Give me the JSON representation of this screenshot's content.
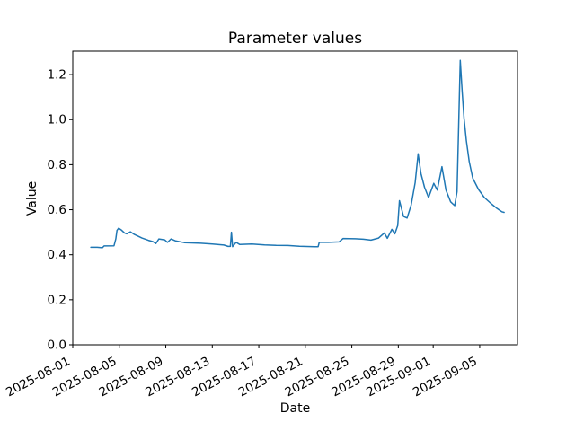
{
  "figure": {
    "background_color": "#ffffff"
  },
  "chart_data": {
    "type": "line",
    "title": "Parameter values",
    "xlabel": "Date",
    "ylabel": "Value",
    "line_color": "#1f77b4",
    "line_width": 1.5,
    "axis_color": "#000000",
    "grid": false,
    "legend": false,
    "x_unit": "days since 2025-08-01",
    "x_domain_days": [
      0,
      38.25
    ],
    "ylim": [
      0,
      1.304
    ],
    "y_ticks": [
      {
        "label": "0.0",
        "value": 0.0
      },
      {
        "label": "0.2",
        "value": 0.2
      },
      {
        "label": "0.4",
        "value": 0.4
      },
      {
        "label": "0.6",
        "value": 0.6
      },
      {
        "label": "0.8",
        "value": 0.8
      },
      {
        "label": "1.0",
        "value": 1.0
      },
      {
        "label": "1.2",
        "value": 1.2
      }
    ],
    "x_ticks": [
      {
        "label": "2025-08-01",
        "day": 0
      },
      {
        "label": "2025-08-05",
        "day": 4
      },
      {
        "label": "2025-08-09",
        "day": 8
      },
      {
        "label": "2025-08-13",
        "day": 12
      },
      {
        "label": "2025-08-17",
        "day": 16
      },
      {
        "label": "2025-08-21",
        "day": 20
      },
      {
        "label": "2025-08-25",
        "day": 24
      },
      {
        "label": "2025-08-29",
        "day": 28
      },
      {
        "label": "2025-09-01",
        "day": 31
      },
      {
        "label": "2025-09-05",
        "day": 35
      }
    ],
    "series": [
      {
        "name": "parameter-values",
        "points": [
          [
            1.55,
            0.433
          ],
          [
            2.1,
            0.433
          ],
          [
            2.55,
            0.431
          ],
          [
            2.7,
            0.439
          ],
          [
            3.55,
            0.44
          ],
          [
            3.7,
            0.47
          ],
          [
            3.8,
            0.508
          ],
          [
            3.95,
            0.518
          ],
          [
            4.2,
            0.509
          ],
          [
            4.45,
            0.497
          ],
          [
            4.65,
            0.493
          ],
          [
            4.95,
            0.502
          ],
          [
            5.3,
            0.49
          ],
          [
            5.95,
            0.474
          ],
          [
            6.5,
            0.464
          ],
          [
            6.9,
            0.458
          ],
          [
            7.15,
            0.45
          ],
          [
            7.4,
            0.47
          ],
          [
            7.9,
            0.466
          ],
          [
            8.15,
            0.455
          ],
          [
            8.45,
            0.47
          ],
          [
            8.8,
            0.462
          ],
          [
            9.6,
            0.454
          ],
          [
            11.0,
            0.451
          ],
          [
            12.0,
            0.448
          ],
          [
            13.0,
            0.443
          ],
          [
            13.35,
            0.437
          ],
          [
            13.55,
            0.437
          ],
          [
            13.65,
            0.5
          ],
          [
            13.75,
            0.436
          ],
          [
            14.05,
            0.455
          ],
          [
            14.35,
            0.446
          ],
          [
            15.4,
            0.448
          ],
          [
            16.5,
            0.444
          ],
          [
            17.5,
            0.442
          ],
          [
            18.5,
            0.441
          ],
          [
            19.5,
            0.438
          ],
          [
            20.8,
            0.436
          ],
          [
            21.1,
            0.436
          ],
          [
            21.2,
            0.456
          ],
          [
            22.0,
            0.455
          ],
          [
            22.9,
            0.457
          ],
          [
            23.25,
            0.472
          ],
          [
            24.3,
            0.471
          ],
          [
            25.0,
            0.469
          ],
          [
            25.65,
            0.465
          ],
          [
            26.3,
            0.474
          ],
          [
            26.8,
            0.497
          ],
          [
            27.05,
            0.473
          ],
          [
            27.45,
            0.513
          ],
          [
            27.7,
            0.493
          ],
          [
            27.95,
            0.53
          ],
          [
            28.1,
            0.64
          ],
          [
            28.45,
            0.57
          ],
          [
            28.75,
            0.563
          ],
          [
            29.1,
            0.62
          ],
          [
            29.45,
            0.72
          ],
          [
            29.7,
            0.848
          ],
          [
            29.95,
            0.76
          ],
          [
            30.25,
            0.7
          ],
          [
            30.6,
            0.654
          ],
          [
            31.05,
            0.717
          ],
          [
            31.35,
            0.687
          ],
          [
            31.75,
            0.791
          ],
          [
            32.1,
            0.687
          ],
          [
            32.5,
            0.635
          ],
          [
            32.85,
            0.618
          ],
          [
            33.05,
            0.68
          ],
          [
            33.33,
            1.263
          ],
          [
            33.5,
            1.12
          ],
          [
            33.65,
            1.006
          ],
          [
            33.85,
            0.906
          ],
          [
            34.1,
            0.813
          ],
          [
            34.4,
            0.74
          ],
          [
            34.9,
            0.69
          ],
          [
            35.4,
            0.654
          ],
          [
            36.0,
            0.626
          ],
          [
            36.5,
            0.605
          ],
          [
            36.9,
            0.591
          ],
          [
            37.1,
            0.588
          ]
        ]
      }
    ]
  }
}
